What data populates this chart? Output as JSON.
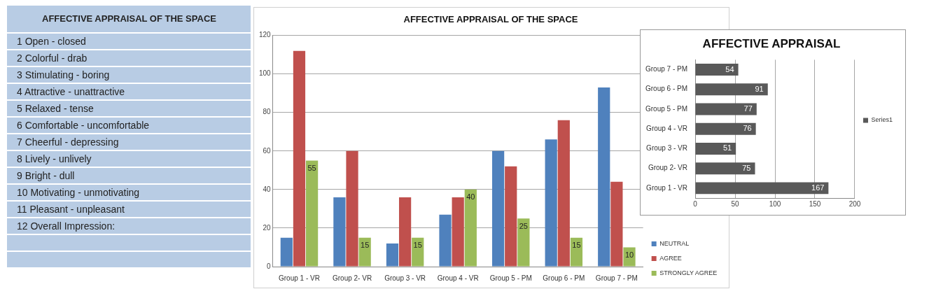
{
  "chart_data": [
    {
      "type": "other",
      "title": "AFFECTIVE APPRAISAL OF THE SPACE",
      "annotations": [
        "1 Open - closed",
        "2 Colorful - drab",
        "3 Stimulating - boring",
        "4 Attractive - unattractive",
        "5 Relaxed - tense",
        "6 Comfortable - uncomfortable",
        "7 Cheerful - depressing",
        "8 Lively - unlively",
        "9 Bright - dull",
        "10 Motivating - unmotivating",
        "11 Pleasant - unpleasant",
        "12 Overall Impression:"
      ]
    },
    {
      "type": "bar",
      "title": "AFFECTIVE APPRAISAL OF THE SPACE",
      "categories": [
        "Group 1 - VR",
        "Group 2- VR",
        "Group 3 - VR",
        "Group 4 - VR",
        "Group 5 - PM",
        "Group 6 - PM",
        "Group 7 - PM"
      ],
      "series": [
        {
          "name": "NEUTRAL",
          "color": "#4f81bd",
          "values": [
            15,
            36,
            12,
            27,
            60,
            66,
            93
          ]
        },
        {
          "name": "AGREE",
          "color": "#c0504d",
          "values": [
            112,
            60,
            36,
            36,
            52,
            76,
            44
          ]
        },
        {
          "name": "STRONGLY AGREE",
          "color": "#9bbb59",
          "values": [
            55,
            15,
            15,
            40,
            25,
            15,
            10
          ],
          "value_labels": [
            "55",
            "15",
            "15",
            "40",
            "25",
            "15",
            "10"
          ]
        }
      ],
      "ylim": [
        0,
        120
      ],
      "yticks": [
        0,
        20,
        40,
        60,
        80,
        100,
        120
      ],
      "grid": "y",
      "legend": "bottom right"
    },
    {
      "type": "bar",
      "title": "AFFECTIVE APPRAISAL",
      "orientation": "horizontal",
      "categories": [
        "Group 7 - PM",
        "Group 6 - PM",
        "Group 5 - PM",
        "Group 4 - VR",
        "Group 3 - VR",
        "Group 2- VR",
        "Group 1 - VR"
      ],
      "series": [
        {
          "name": "Series1",
          "color": "#595959",
          "values": [
            54,
            91,
            77,
            76,
            51,
            75,
            167
          ]
        }
      ],
      "xlim": [
        0,
        200
      ],
      "xticks": [
        0,
        50,
        100,
        150,
        200
      ],
      "grid": "x",
      "legend": "right",
      "data_labels": true
    }
  ]
}
